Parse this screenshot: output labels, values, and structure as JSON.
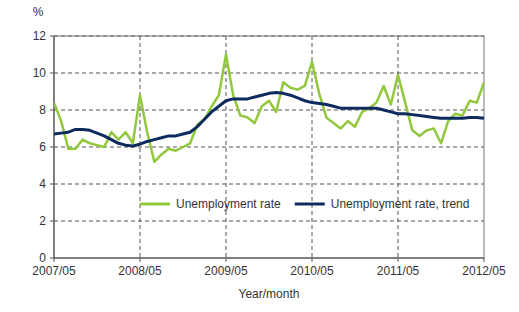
{
  "chart_data": {
    "type": "line",
    "x_label": "Year/month",
    "y_label": "%",
    "categories": [
      "2007/05",
      null,
      null,
      null,
      null,
      null,
      null,
      null,
      null,
      null,
      null,
      null,
      "2008/05",
      null,
      null,
      null,
      null,
      null,
      null,
      null,
      null,
      null,
      null,
      null,
      "2009/05",
      null,
      null,
      null,
      null,
      null,
      null,
      null,
      null,
      null,
      null,
      null,
      "2010/05",
      null,
      null,
      null,
      null,
      null,
      null,
      null,
      null,
      null,
      null,
      null,
      "2011/05",
      null,
      null,
      null,
      null,
      null,
      null,
      null,
      null,
      null,
      null,
      null,
      "2012/05"
    ],
    "series": [
      {
        "name": "Unemployment rate",
        "color": "#92c83e",
        "values": [
          8.4,
          7.4,
          5.9,
          5.9,
          6.4,
          6.2,
          6.1,
          6.0,
          6.8,
          6.4,
          6.8,
          6.2,
          8.8,
          6.8,
          5.2,
          5.6,
          5.9,
          5.8,
          6.0,
          6.2,
          7.2,
          7.5,
          8.2,
          8.8,
          11.0,
          8.8,
          7.7,
          7.6,
          7.3,
          8.2,
          8.5,
          7.9,
          9.5,
          9.2,
          9.1,
          9.3,
          10.6,
          8.9,
          7.6,
          7.3,
          7.0,
          7.4,
          7.1,
          7.9,
          8.1,
          8.4,
          9.3,
          8.3,
          9.9,
          8.4,
          6.9,
          6.6,
          6.9,
          7.0,
          6.2,
          7.4,
          7.8,
          7.7,
          8.5,
          8.4,
          9.5
        ]
      },
      {
        "name": "Unemployment rate, trend",
        "color": "#0d2b5e",
        "values": [
          6.7,
          6.75,
          6.8,
          6.95,
          6.95,
          6.9,
          6.75,
          6.6,
          6.4,
          6.2,
          6.1,
          6.05,
          6.15,
          6.3,
          6.4,
          6.5,
          6.6,
          6.6,
          6.7,
          6.8,
          7.1,
          7.5,
          7.9,
          8.2,
          8.5,
          8.6,
          8.6,
          8.6,
          8.7,
          8.8,
          8.9,
          8.95,
          8.9,
          8.8,
          8.65,
          8.5,
          8.4,
          8.35,
          8.3,
          8.2,
          8.1,
          8.1,
          8.1,
          8.1,
          8.1,
          8.1,
          8.0,
          7.9,
          7.8,
          7.8,
          7.75,
          7.7,
          7.65,
          7.6,
          7.55,
          7.55,
          7.55,
          7.55,
          7.6,
          7.6,
          7.55
        ]
      }
    ],
    "ylim": [
      0,
      12
    ],
    "yticks": [
      0,
      2,
      4,
      6,
      8,
      10,
      12
    ],
    "grid": true,
    "legend": "lower right"
  }
}
